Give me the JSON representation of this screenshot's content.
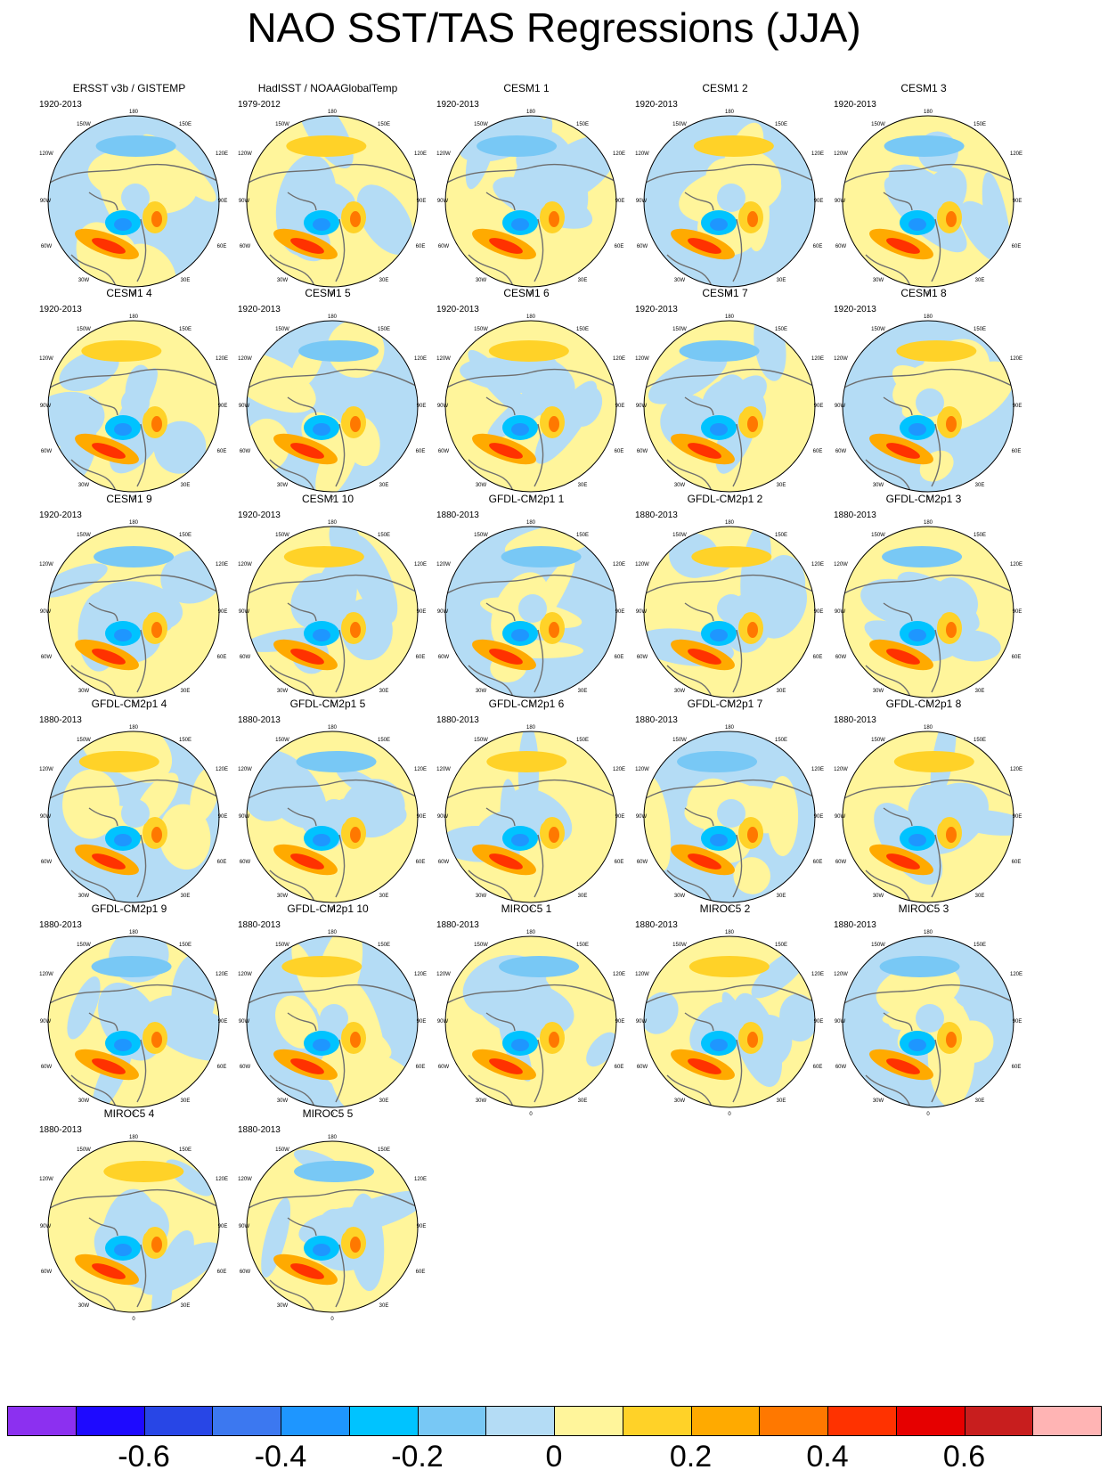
{
  "title": "NAO SST/TAS Regressions (JJA)",
  "panels": [
    {
      "title": "ERSST v3b / GISTEMP",
      "period": "1920-2013"
    },
    {
      "title": "HadISST / NOAAGlobalTemp",
      "period": "1979-2012"
    },
    {
      "title": "CESM1 1",
      "period": "1920-2013"
    },
    {
      "title": "CESM1 2",
      "period": "1920-2013"
    },
    {
      "title": "CESM1 3",
      "period": "1920-2013"
    },
    {
      "title": "CESM1 4",
      "period": "1920-2013"
    },
    {
      "title": "CESM1 5",
      "period": "1920-2013"
    },
    {
      "title": "CESM1 6",
      "period": "1920-2013"
    },
    {
      "title": "CESM1 7",
      "period": "1920-2013"
    },
    {
      "title": "CESM1 8",
      "period": "1920-2013"
    },
    {
      "title": "CESM1 9",
      "period": "1920-2013"
    },
    {
      "title": "CESM1 10",
      "period": "1920-2013"
    },
    {
      "title": "GFDL-CM2p1 1",
      "period": "1880-2013"
    },
    {
      "title": "GFDL-CM2p1 2",
      "period": "1880-2013"
    },
    {
      "title": "GFDL-CM2p1 3",
      "period": "1880-2013"
    },
    {
      "title": "GFDL-CM2p1 4",
      "period": "1880-2013"
    },
    {
      "title": "GFDL-CM2p1 5",
      "period": "1880-2013"
    },
    {
      "title": "GFDL-CM2p1 6",
      "period": "1880-2013"
    },
    {
      "title": "GFDL-CM2p1 7",
      "period": "1880-2013"
    },
    {
      "title": "GFDL-CM2p1 8",
      "period": "1880-2013"
    },
    {
      "title": "GFDL-CM2p1 9",
      "period": "1880-2013"
    },
    {
      "title": "GFDL-CM2p1 10",
      "period": "1880-2013"
    },
    {
      "title": "MIROC5 1",
      "period": "1880-2013"
    },
    {
      "title": "MIROC5 2",
      "period": "1880-2013"
    },
    {
      "title": "MIROC5 3",
      "period": "1880-2013"
    },
    {
      "title": "MIROC5 4",
      "period": "1880-2013"
    },
    {
      "title": "MIROC5 5",
      "period": "1880-2013"
    }
  ],
  "map_longitude_labels": [
    "180",
    "150W",
    "150E",
    "120W",
    "120E",
    "90W",
    "90E",
    "60W",
    "60E",
    "30W",
    "30E",
    "0"
  ],
  "colorbar": {
    "colors": [
      "#8c30f0",
      "#1e0aff",
      "#2846e6",
      "#3c78f0",
      "#1e96ff",
      "#00c3ff",
      "#78c8f5",
      "#b4dcf5",
      "#fff59b",
      "#ffd228",
      "#ffaa00",
      "#ff7800",
      "#ff3200",
      "#e60000",
      "#c81e1e",
      "#ffb4b4"
    ],
    "tick_labels": [
      "-0.6",
      "-0.4",
      "-0.2",
      "0",
      "0.2",
      "0.4",
      "0.6"
    ]
  }
}
